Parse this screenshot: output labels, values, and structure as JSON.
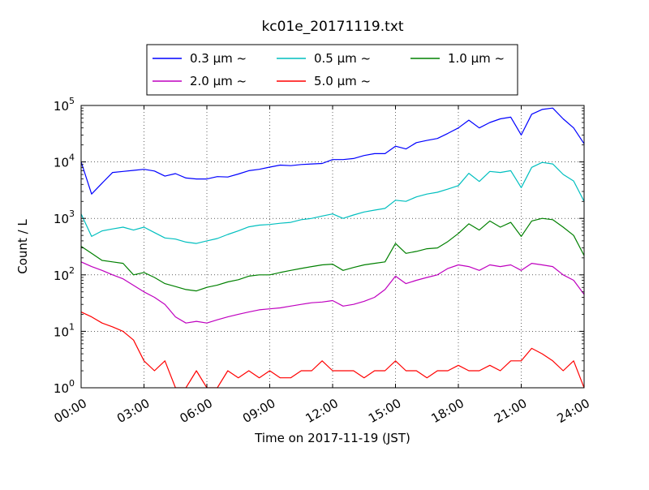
{
  "chart_data": {
    "type": "line",
    "title": "kc01e_20171119.txt",
    "xlabel": "Time on 2017-11-19 (JST)",
    "ylabel": "Count / L",
    "yscale": "log",
    "ylim": [
      1,
      100000
    ],
    "xlim": [
      "00:00",
      "24:00"
    ],
    "x_ticks": [
      "00:00",
      "03:00",
      "06:00",
      "09:00",
      "12:00",
      "15:00",
      "18:00",
      "21:00",
      "24:00"
    ],
    "y_ticks": [
      {
        "base": "10",
        "exp": "0"
      },
      {
        "base": "10",
        "exp": "1"
      },
      {
        "base": "10",
        "exp": "2"
      },
      {
        "base": "10",
        "exp": "3"
      },
      {
        "base": "10",
        "exp": "4"
      },
      {
        "base": "10",
        "exp": "5"
      }
    ],
    "grid": true,
    "legend_position": "top-center",
    "x_hours": [
      0,
      0.5,
      1,
      1.5,
      2,
      2.5,
      3,
      3.5,
      4,
      4.5,
      5,
      5.5,
      6,
      6.5,
      7,
      7.5,
      8,
      8.5,
      9,
      9.5,
      10,
      10.5,
      11,
      11.5,
      12,
      12.5,
      13,
      13.5,
      14,
      14.5,
      15,
      15.5,
      16,
      16.5,
      17,
      17.5,
      18,
      18.5,
      19,
      19.5,
      20,
      20.5,
      21,
      21.5,
      22,
      22.5,
      23,
      23.5,
      24
    ],
    "series": [
      {
        "name": "0.3 μm ~",
        "color": "#0000ff",
        "values": [
          10000,
          2700,
          4200,
          6500,
          6800,
          7100,
          7400,
          6900,
          5600,
          6200,
          5200,
          5000,
          5000,
          5500,
          5400,
          6100,
          7000,
          7400,
          8100,
          8800,
          8600,
          9000,
          9200,
          9400,
          11000,
          11000,
          11500,
          13000,
          14000,
          14000,
          19000,
          17000,
          22000,
          24000,
          26000,
          32000,
          40000,
          55000,
          40000,
          50000,
          58000,
          62000,
          30000,
          70000,
          85000,
          90000,
          58000,
          40000,
          21000
        ]
      },
      {
        "name": "0.5 μm ~",
        "color": "#00bfbf",
        "values": [
          1200,
          480,
          600,
          650,
          700,
          620,
          700,
          560,
          450,
          430,
          380,
          360,
          400,
          440,
          520,
          600,
          710,
          760,
          780,
          820,
          850,
          950,
          1000,
          1100,
          1200,
          1000,
          1150,
          1300,
          1400,
          1500,
          2100,
          2000,
          2400,
          2700,
          2900,
          3300,
          3800,
          6300,
          4500,
          6800,
          6500,
          7000,
          3500,
          8000,
          9800,
          9200,
          6000,
          4600,
          2000
        ]
      },
      {
        "name": "1.0 μm ~",
        "color": "#008000",
        "values": [
          320,
          240,
          180,
          170,
          160,
          100,
          110,
          90,
          70,
          62,
          55,
          52,
          60,
          66,
          75,
          82,
          95,
          100,
          100,
          110,
          120,
          130,
          140,
          150,
          155,
          120,
          135,
          150,
          160,
          170,
          360,
          240,
          260,
          290,
          300,
          390,
          540,
          800,
          620,
          900,
          700,
          850,
          480,
          900,
          1000,
          950,
          700,
          500,
          220
        ]
      },
      {
        "name": "2.0 μm ~",
        "color": "#bf00bf",
        "values": [
          170,
          140,
          120,
          100,
          85,
          65,
          50,
          40,
          30,
          18,
          14,
          15,
          14,
          16,
          18,
          20,
          22,
          24,
          25,
          26,
          28,
          30,
          32,
          33,
          35,
          28,
          30,
          34,
          40,
          55,
          95,
          70,
          80,
          90,
          100,
          130,
          150,
          140,
          120,
          150,
          140,
          150,
          120,
          160,
          150,
          140,
          100,
          80,
          45
        ]
      },
      {
        "name": "5.0 μm ~",
        "color": "#ff0000",
        "values": [
          22,
          18,
          14,
          12,
          10,
          7,
          3,
          2,
          3,
          1,
          1,
          2,
          1,
          1,
          2,
          1.5,
          2,
          1.5,
          2,
          1.5,
          1.5,
          2,
          2,
          3,
          2,
          2,
          2,
          1.5,
          2,
          2,
          3,
          2,
          2,
          1.5,
          2,
          2,
          2.5,
          2,
          2,
          2.5,
          2,
          3,
          3,
          5,
          4,
          3,
          2,
          3,
          1
        ]
      }
    ]
  }
}
